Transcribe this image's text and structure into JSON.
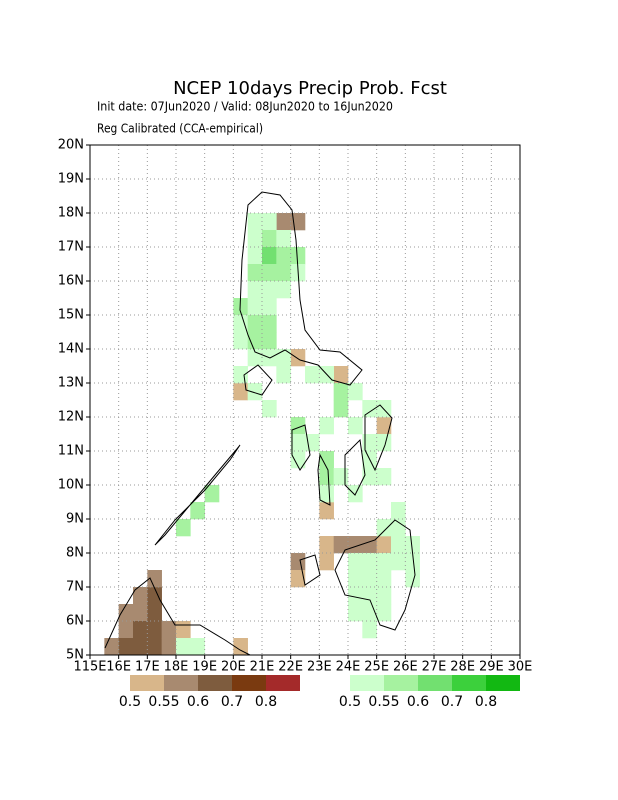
{
  "title": "NCEP 10days Precip Prob. Fcst",
  "subtitle": "Init date: 07Jun2020 / Valid: 08Jun2020 to 16Jun2020",
  "method": "Reg Calibrated (CCA-empirical)",
  "map": {
    "xlim": [
      115,
      130
    ],
    "ylim": [
      5,
      20
    ],
    "xticks": [
      {
        "value": 115,
        "label": "115E"
      },
      {
        "value": 116,
        "label": "16E"
      },
      {
        "value": 117,
        "label": "17E"
      },
      {
        "value": 118,
        "label": "18E"
      },
      {
        "value": 119,
        "label": "19E"
      },
      {
        "value": 120,
        "label": "20E"
      },
      {
        "value": 121,
        "label": "21E"
      },
      {
        "value": 122,
        "label": "22E"
      },
      {
        "value": 123,
        "label": "23E"
      },
      {
        "value": 124,
        "label": "24E"
      },
      {
        "value": 125,
        "label": "25E"
      },
      {
        "value": 126,
        "label": "26E"
      },
      {
        "value": 127,
        "label": "27E"
      },
      {
        "value": 128,
        "label": "28E"
      },
      {
        "value": 129,
        "label": "29E"
      },
      {
        "value": 130,
        "label": "30E"
      }
    ],
    "yticks": [
      {
        "value": 5,
        "label": "5N"
      },
      {
        "value": 6,
        "label": "6N"
      },
      {
        "value": 7,
        "label": "7N"
      },
      {
        "value": 8,
        "label": "8N"
      },
      {
        "value": 9,
        "label": "9N"
      },
      {
        "value": 10,
        "label": "10N"
      },
      {
        "value": 11,
        "label": "11N"
      },
      {
        "value": 12,
        "label": "12N"
      },
      {
        "value": 13,
        "label": "13N"
      },
      {
        "value": 14,
        "label": "14N"
      },
      {
        "value": 15,
        "label": "15N"
      },
      {
        "value": 16,
        "label": "16N"
      },
      {
        "value": 17,
        "label": "17N"
      },
      {
        "value": 18,
        "label": "18N"
      },
      {
        "value": 19,
        "label": "19N"
      },
      {
        "value": 20,
        "label": "20N"
      }
    ],
    "grid": true,
    "cell_size": 0.5
  },
  "legend_below": {
    "colors": [
      "#d8b68a",
      "#a88a70",
      "#7e5c3e",
      "#7a3a10",
      "#a42a2a"
    ],
    "labels": [
      "0.5",
      "0.55",
      "0.6",
      "0.7",
      "0.8"
    ]
  },
  "legend_above": {
    "colors": [
      "#ccffcc",
      "#a6f2a0",
      "#72e070",
      "#3cd03c",
      "#12b812"
    ],
    "labels": [
      "0.5",
      "0.55",
      "0.6",
      "0.7",
      "0.8"
    ]
  },
  "above_cells": [
    [
      120.5,
      17.5,
      1
    ],
    [
      121,
      17.5,
      1
    ],
    [
      120.5,
      17,
      1
    ],
    [
      121,
      17,
      2
    ],
    [
      121.5,
      17,
      1
    ],
    [
      120.5,
      16.5,
      1
    ],
    [
      121,
      16.5,
      3
    ],
    [
      121.5,
      16.5,
      2
    ],
    [
      122,
      16.5,
      2
    ],
    [
      120.5,
      16,
      2
    ],
    [
      121,
      16,
      2
    ],
    [
      121.5,
      16,
      2
    ],
    [
      122,
      16,
      1
    ],
    [
      120.5,
      15.5,
      1
    ],
    [
      121,
      15.5,
      1
    ],
    [
      121.5,
      15.5,
      1
    ],
    [
      120,
      15,
      2
    ],
    [
      120.5,
      15,
      1
    ],
    [
      121,
      15,
      1
    ],
    [
      120,
      14.5,
      1
    ],
    [
      120.5,
      14.5,
      2
    ],
    [
      121,
      14.5,
      2
    ],
    [
      120,
      14,
      1
    ],
    [
      120.5,
      14,
      2
    ],
    [
      121,
      14,
      2
    ],
    [
      120.5,
      13.5,
      1
    ],
    [
      121,
      13.5,
      1
    ],
    [
      121.5,
      13.5,
      1
    ],
    [
      120,
      13,
      1
    ],
    [
      121.5,
      13,
      1
    ],
    [
      122.5,
      13,
      1
    ],
    [
      123,
      13,
      1
    ],
    [
      120.5,
      12.5,
      1
    ],
    [
      123.5,
      12.5,
      2
    ],
    [
      124,
      12.5,
      1
    ],
    [
      121,
      12,
      1
    ],
    [
      123.5,
      12,
      2
    ],
    [
      124.5,
      12,
      1
    ],
    [
      125,
      12,
      1
    ],
    [
      122,
      11.5,
      2
    ],
    [
      123,
      11.5,
      1
    ],
    [
      124,
      11.5,
      1
    ],
    [
      122,
      11,
      1
    ],
    [
      122.5,
      11,
      1
    ],
    [
      124.5,
      11,
      1
    ],
    [
      125,
      11,
      1
    ],
    [
      122,
      10.5,
      1
    ],
    [
      123,
      10.5,
      2
    ],
    [
      124.5,
      10.5,
      1
    ],
    [
      123,
      10,
      2
    ],
    [
      123.5,
      10,
      1
    ],
    [
      124.5,
      10,
      1
    ],
    [
      125,
      10,
      1
    ],
    [
      119,
      9.5,
      2
    ],
    [
      123,
      9.5,
      1
    ],
    [
      124,
      9.5,
      1
    ],
    [
      118.5,
      9,
      2
    ],
    [
      125.5,
      9,
      1
    ],
    [
      118,
      8.5,
      2
    ],
    [
      125,
      8.5,
      1
    ],
    [
      125.5,
      8.5,
      1
    ],
    [
      125.5,
      8,
      1
    ],
    [
      126,
      8,
      1
    ],
    [
      124,
      7.5,
      1
    ],
    [
      124.5,
      7.5,
      1
    ],
    [
      125,
      7.5,
      1
    ],
    [
      125.5,
      7.5,
      1
    ],
    [
      126,
      7.5,
      1
    ],
    [
      124,
      7,
      1
    ],
    [
      124.5,
      7,
      1
    ],
    [
      125,
      7,
      1
    ],
    [
      126,
      7,
      1
    ],
    [
      124,
      6.5,
      1
    ],
    [
      124.5,
      6.5,
      1
    ],
    [
      125,
      6.5,
      1
    ],
    [
      124,
      6,
      1
    ],
    [
      124.5,
      6,
      1
    ],
    [
      125,
      6,
      1
    ],
    [
      124.5,
      5.5,
      1
    ],
    [
      118,
      5,
      1
    ],
    [
      118.5,
      5,
      1
    ]
  ],
  "below_cells": [
    [
      121.5,
      17.5,
      2
    ],
    [
      122,
      17.5,
      2
    ],
    [
      120,
      12.5,
      1
    ],
    [
      122,
      13.5,
      1
    ],
    [
      123.5,
      13,
      1
    ],
    [
      125,
      11.5,
      1
    ],
    [
      123,
      9,
      1
    ],
    [
      123,
      8,
      1
    ],
    [
      123.5,
      8,
      2
    ],
    [
      124,
      8,
      2
    ],
    [
      124.5,
      8,
      2
    ],
    [
      125,
      8,
      1
    ],
    [
      122,
      7.5,
      2
    ],
    [
      123,
      7.5,
      1
    ],
    [
      122,
      7,
      1
    ],
    [
      115.5,
      5,
      2
    ],
    [
      116,
      5.5,
      2
    ],
    [
      116,
      6,
      2
    ],
    [
      116.5,
      6,
      2
    ],
    [
      116.5,
      6.5,
      2
    ],
    [
      117,
      6.5,
      3
    ],
    [
      117,
      7,
      2
    ],
    [
      117,
      5.5,
      3
    ],
    [
      117,
      6,
      3
    ],
    [
      116.5,
      5.5,
      3
    ],
    [
      116,
      5,
      3
    ],
    [
      116.5,
      5,
      3
    ],
    [
      117,
      5,
      3
    ],
    [
      117.5,
      5.5,
      2
    ],
    [
      117.5,
      5,
      2
    ],
    [
      118,
      5.5,
      1
    ],
    [
      120,
      5,
      1
    ]
  ]
}
